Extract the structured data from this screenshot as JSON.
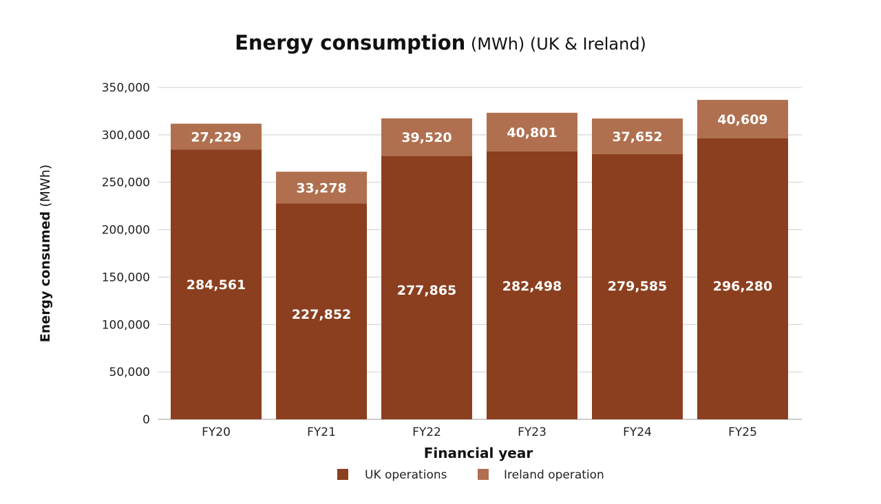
{
  "chart_data": {
    "type": "bar",
    "stacked": true,
    "title": "Energy consumption",
    "title_suffix": " (MWh) (UK & Ireland)",
    "xlabel": "Financial year",
    "ylabel": "Energy consumed",
    "ylabel_suffix": " (MWh)",
    "categories": [
      "FY20",
      "FY21",
      "FY22",
      "FY23",
      "FY24",
      "FY25"
    ],
    "series": [
      {
        "name": "UK operations",
        "color": "#8b3f1f",
        "values": [
          284561,
          227852,
          277865,
          282498,
          279585,
          296280
        ],
        "labels": [
          "284,561",
          "227,852",
          "277,865",
          "282,498",
          "279,585",
          "296,280"
        ]
      },
      {
        "name": "Ireland operation",
        "color": "#b0704f",
        "values": [
          27229,
          33278,
          39520,
          40801,
          37652,
          40609
        ],
        "labels": [
          "27,229",
          "33,278",
          "39,520",
          "40,801",
          "37,652",
          "40,609"
        ]
      }
    ],
    "ylim": [
      0,
      350000
    ],
    "yticks": [
      0,
      50000,
      100000,
      150000,
      200000,
      250000,
      300000,
      350000
    ],
    "ytick_labels": [
      "0",
      "50,000",
      "100,000",
      "150,000",
      "200,000",
      "250,000",
      "300,000",
      "350,000"
    ],
    "grid": true,
    "legend_position": "bottom"
  }
}
